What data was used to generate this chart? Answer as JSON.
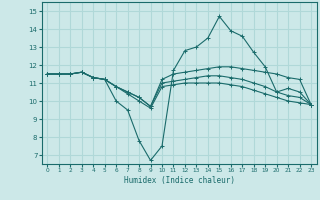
{
  "title": "",
  "xlabel": "Humidex (Indice chaleur)",
  "bg_color": "#cce8e8",
  "grid_color": "#b0d8d8",
  "line_color": "#1a6b6b",
  "xlim": [
    -0.5,
    23.5
  ],
  "ylim": [
    6.5,
    15.5
  ],
  "yticks": [
    7,
    8,
    9,
    10,
    11,
    12,
    13,
    14,
    15
  ],
  "xticks": [
    0,
    1,
    2,
    3,
    4,
    5,
    6,
    7,
    8,
    9,
    10,
    11,
    12,
    13,
    14,
    15,
    16,
    17,
    18,
    19,
    20,
    21,
    22,
    23
  ],
  "series": [
    [
      11.5,
      11.5,
      11.5,
      11.6,
      11.3,
      11.2,
      10.0,
      9.5,
      7.8,
      6.7,
      7.5,
      11.7,
      12.8,
      13.0,
      13.5,
      14.7,
      13.9,
      13.6,
      12.7,
      11.9,
      10.5,
      10.7,
      10.5,
      9.8
    ],
    [
      11.5,
      11.5,
      11.5,
      11.6,
      11.3,
      11.2,
      10.8,
      10.5,
      10.2,
      9.7,
      11.2,
      11.5,
      11.6,
      11.7,
      11.8,
      11.9,
      11.9,
      11.8,
      11.7,
      11.6,
      11.5,
      11.3,
      11.2,
      9.8
    ],
    [
      11.5,
      11.5,
      11.5,
      11.6,
      11.3,
      11.2,
      10.8,
      10.5,
      10.2,
      9.7,
      11.0,
      11.1,
      11.2,
      11.3,
      11.4,
      11.4,
      11.3,
      11.2,
      11.0,
      10.8,
      10.5,
      10.3,
      10.2,
      9.8
    ],
    [
      11.5,
      11.5,
      11.5,
      11.6,
      11.3,
      11.2,
      10.8,
      10.4,
      10.0,
      9.6,
      10.8,
      10.9,
      11.0,
      11.0,
      11.0,
      11.0,
      10.9,
      10.8,
      10.6,
      10.4,
      10.2,
      10.0,
      9.9,
      9.8
    ]
  ]
}
